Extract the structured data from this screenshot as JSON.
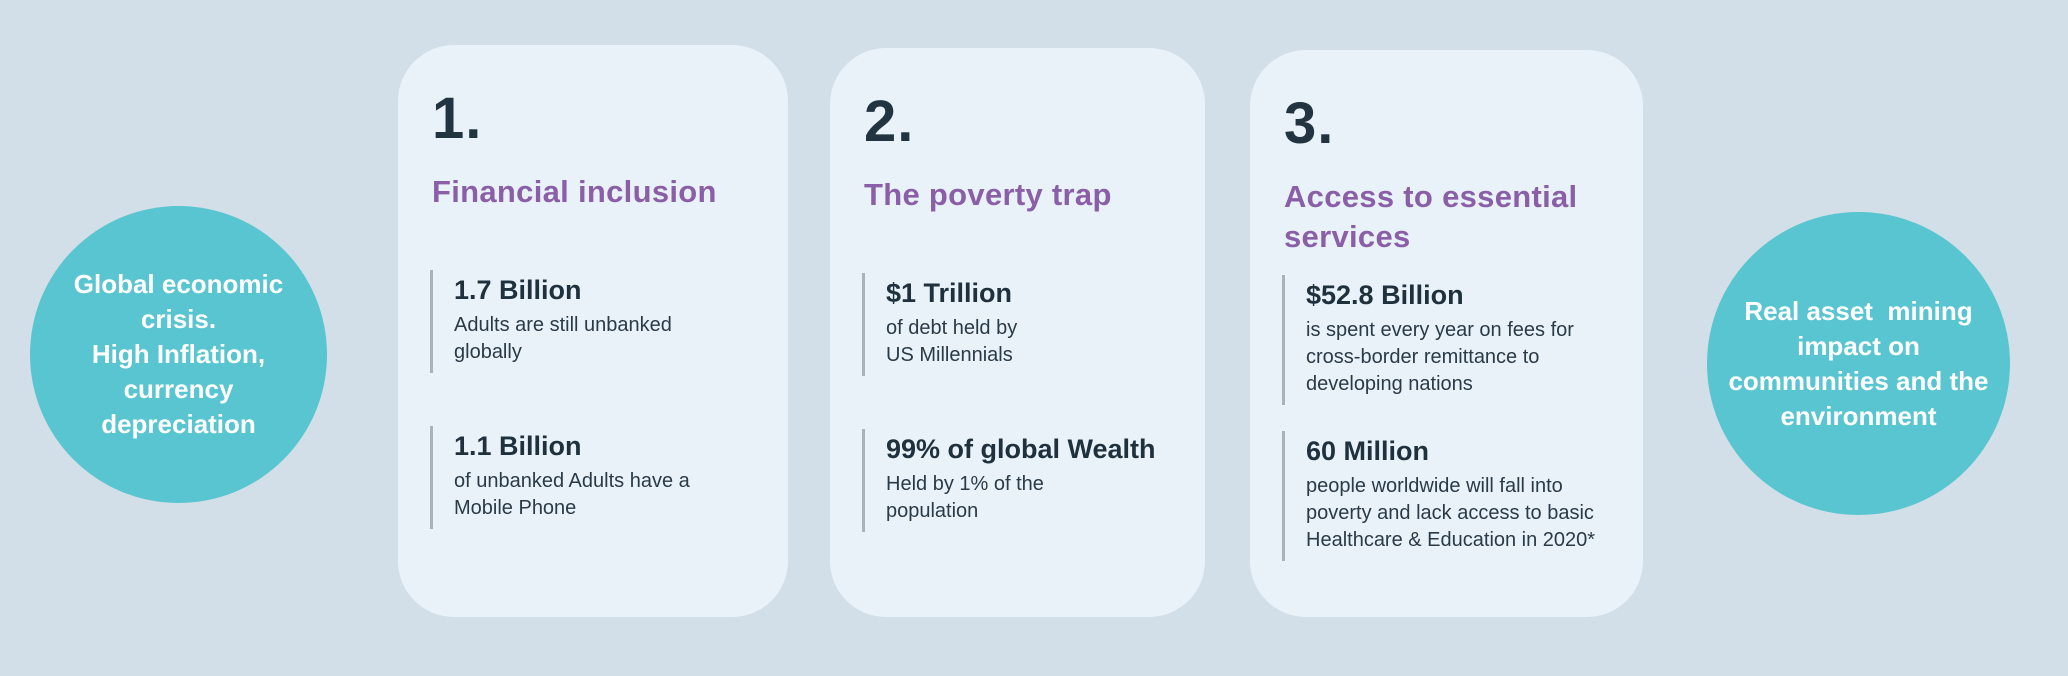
{
  "colors": {
    "page-bg": "#d2dfe9",
    "card-bg": "#e9f2f9",
    "circle-teal": "#58c5d0",
    "heading-purple": "#8a5fa8",
    "text-dark": "#233441",
    "stat-bar-gray": "#a8b3bb"
  },
  "left_circle": {
    "text": "Global economic\ncrisis.\nHigh Inflation,\ncurrency\ndepreciation"
  },
  "right_circle": {
    "text": "Real asset  mining\nimpact on\ncommunities and the\nenvironment"
  },
  "cards": [
    {
      "number": "1.",
      "title": "Financial inclusion",
      "stats": [
        {
          "value": "1.7 Billion",
          "description": "Adults are still unbanked\nglobally"
        },
        {
          "value": "1.1 Billion",
          "description": "of unbanked Adults have a\nMobile Phone"
        }
      ]
    },
    {
      "number": "2.",
      "title": "The poverty trap",
      "stats": [
        {
          "value": "$1 Trillion",
          "description": "of debt held by\nUS Millennials"
        },
        {
          "value": "99% of global Wealth",
          "description": "Held by 1% of the\npopulation"
        }
      ]
    },
    {
      "number": "3.",
      "title": "Access to essential\nservices",
      "stats": [
        {
          "value": "$52.8 Billion",
          "description": "is spent every year on fees for\ncross-border remittance to\ndeveloping nations"
        },
        {
          "value": "60 Million",
          "description": "people worldwide will fall into\npoverty and lack access to basic\nHealthcare & Education in 2020*"
        }
      ]
    }
  ]
}
